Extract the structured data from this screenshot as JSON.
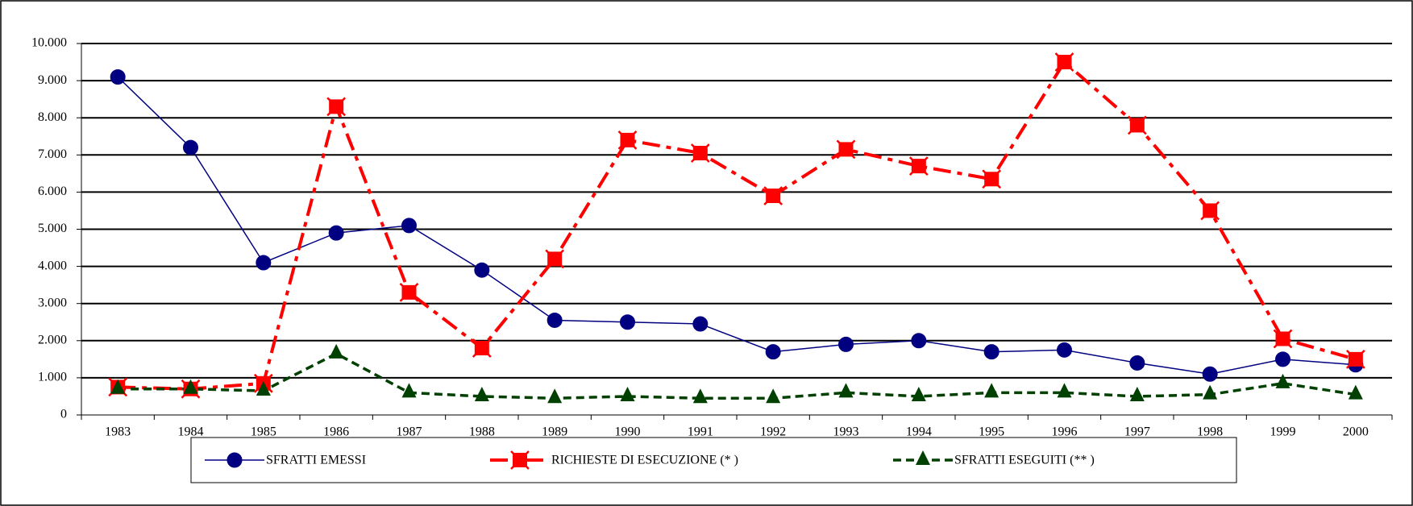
{
  "chart_data": {
    "type": "line",
    "categories": [
      "1983",
      "1984",
      "1985",
      "1986",
      "1987",
      "1988",
      "1989",
      "1990",
      "1991",
      "1992",
      "1993",
      "1994",
      "1995",
      "1996",
      "1997",
      "1998",
      "1999",
      "2000"
    ],
    "series": [
      {
        "name": "SFRATTI EMESSI",
        "color": "#000080",
        "marker": "circle",
        "dash": "solid",
        "values": [
          9100,
          7200,
          4100,
          4900,
          5100,
          3900,
          2550,
          2500,
          2450,
          1700,
          1900,
          2000,
          1700,
          1750,
          1400,
          1100,
          1500,
          1350
        ]
      },
      {
        "name": "RICHIESTE DI ESECUZIONE  (* )",
        "color": "#ff0000",
        "marker": "square-x",
        "dash": "dashdot",
        "values": [
          750,
          700,
          850,
          8300,
          3300,
          1800,
          4200,
          7400,
          7050,
          5900,
          7150,
          6700,
          6350,
          9500,
          7800,
          5500,
          2050,
          1500
        ]
      },
      {
        "name": "SFRATTI ESEGUITI (** )",
        "color": "#004000",
        "marker": "triangle",
        "dash": "dash",
        "values": [
          700,
          700,
          650,
          1650,
          600,
          500,
          450,
          500,
          450,
          450,
          600,
          500,
          600,
          600,
          500,
          550,
          850,
          550
        ]
      }
    ],
    "ylim": [
      0,
      10000
    ],
    "yticks": [
      0,
      {
        "value": 1000,
        "label": "1.000"
      },
      {
        "value": 2000,
        "label": "2.000"
      },
      {
        "value": 3000,
        "label": "3.000"
      },
      {
        "value": 4000,
        "label": "4.000"
      },
      {
        "value": 5000,
        "label": "5.000"
      },
      {
        "value": 6000,
        "label": "6.000"
      },
      {
        "value": 7000,
        "label": "7.000"
      },
      {
        "value": 8000,
        "label": "8.000"
      },
      {
        "value": 9000,
        "label": "9.000"
      },
      {
        "value": 10000,
        "label": "10.000"
      }
    ],
    "grid": true,
    "legend": "bottom"
  }
}
